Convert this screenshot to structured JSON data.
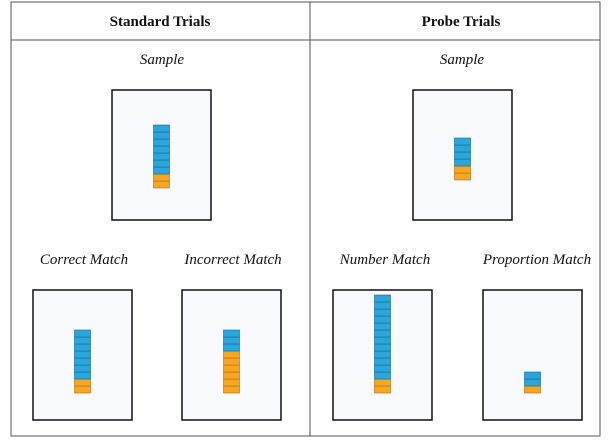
{
  "table": {
    "headers": [
      "Standard Trials",
      "Probe Trials"
    ],
    "panels": [
      {
        "label": "Sample",
        "blue": 7,
        "orange": 2
      },
      {
        "label": "Sample",
        "blue": 4,
        "orange": 2
      },
      {
        "label": "Correct Match",
        "blue": 7,
        "orange": 2
      },
      {
        "label": "Incorrect Match",
        "blue": 3,
        "orange": 6
      },
      {
        "label": "Number Match",
        "blue": 12,
        "orange": 2
      },
      {
        "label": "Proportion Match",
        "blue": 2,
        "orange": 1
      }
    ]
  }
}
